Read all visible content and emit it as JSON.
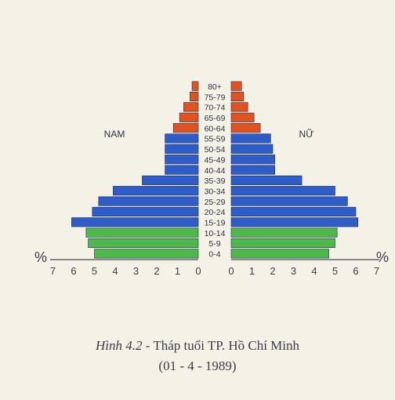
{
  "chart_data": {
    "type": "bar",
    "subtype": "population-pyramid",
    "age_groups": [
      "0-4",
      "5-9",
      "10-14",
      "15-19",
      "20-24",
      "25-29",
      "30-34",
      "35-39",
      "40-44",
      "45-49",
      "50-54",
      "55-59",
      "60-64",
      "65-69",
      "70-74",
      "75-79",
      "80+"
    ],
    "series": [
      {
        "name": "NAM",
        "values": [
          5.0,
          5.3,
          5.4,
          6.1,
          5.1,
          4.8,
          4.1,
          2.7,
          1.6,
          1.6,
          1.6,
          1.6,
          1.2,
          0.9,
          0.7,
          0.4,
          0.3
        ]
      },
      {
        "name": "NỮ",
        "values": [
          4.7,
          5.0,
          5.1,
          6.1,
          6.0,
          5.6,
          5.0,
          3.4,
          2.1,
          2.1,
          2.0,
          1.9,
          1.4,
          1.1,
          0.8,
          0.6,
          0.5
        ]
      }
    ],
    "age_group_colors": {
      "young": "#4fb84a",
      "working": "#2e5cc8",
      "old": "#e0521e"
    },
    "x_axis": {
      "ticks_left": [
        "7",
        "6",
        "5",
        "4",
        "3",
        "2",
        "1",
        "0"
      ],
      "ticks_right": [
        "0",
        "1",
        "2",
        "3",
        "4",
        "5",
        "6",
        "7"
      ],
      "unit_left": "%",
      "unit_right": "%",
      "range": [
        0,
        7
      ]
    },
    "labels": {
      "left": "NAM",
      "right": "NỮ"
    },
    "grid": false
  },
  "caption": {
    "fig_num": "Hình 4.2",
    "title": " - Tháp tuổi TP. Hồ Chí Minh",
    "date": "(01 - 4 - 1989)"
  }
}
